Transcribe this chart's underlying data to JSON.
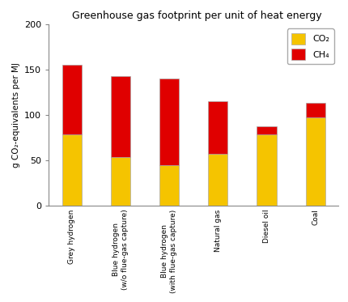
{
  "categories": [
    "Grey hydrogen",
    "Blue hydrogen\n(w/o flue-gas capture)",
    "Blue hydrogen\n(with flue-gas capture)",
    "Natural gas",
    "Diesel oil",
    "Coal"
  ],
  "co2_values": [
    78,
    53,
    44,
    57,
    78,
    97
  ],
  "ch4_values": [
    77,
    90,
    96,
    58,
    9,
    16
  ],
  "co2_color": "#F5C400",
  "ch4_color": "#E00000",
  "title": "Greenhouse gas footprint per unit of heat energy",
  "ylabel": "g CO₂-equivalents per MJ",
  "ylim": [
    0,
    200
  ],
  "yticks": [
    0,
    50,
    100,
    150,
    200
  ],
  "bar_width": 0.4,
  "legend_co2_label": "CO₂",
  "legend_ch4_label": "CH₄",
  "background_color": "#ffffff",
  "edge_color": "#aaaaaa",
  "edge_linewidth": 0.5,
  "title_fontsize": 9,
  "axis_fontsize": 7.5,
  "tick_fontsize": 8,
  "legend_fontsize": 8
}
